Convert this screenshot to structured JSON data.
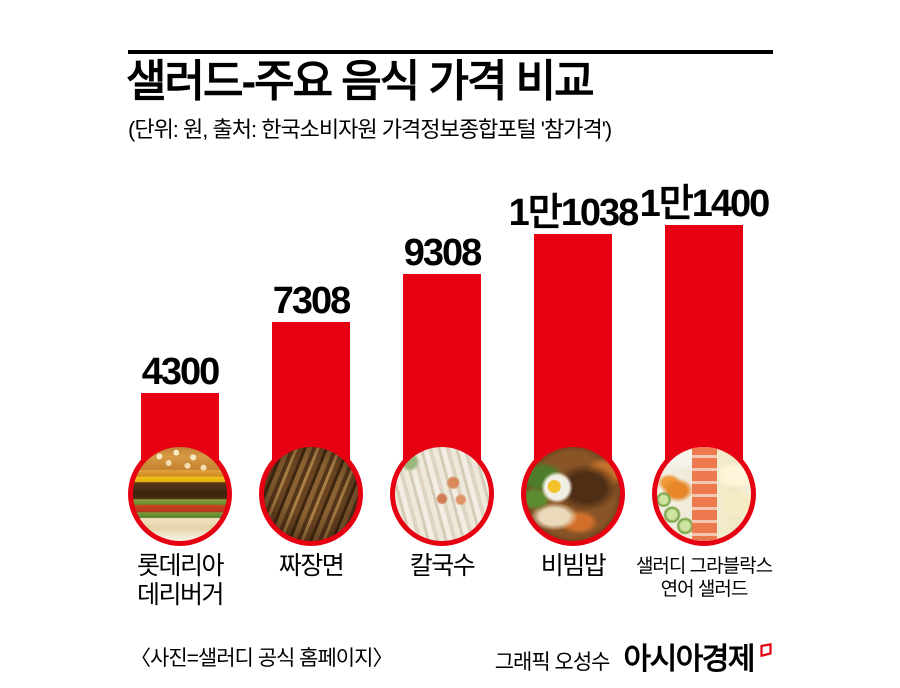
{
  "header": {
    "title": "샐러드-주요 음식 가격 비교",
    "subtitle": "(단위: 원, 출처: 한국소비자원 가격정보종합포털 '참가격')"
  },
  "chart_data": {
    "type": "bar",
    "title": "샐러드-주요 음식 가격 비교",
    "unit_source_note": "(단위: 원, 출처: 한국소비자원 가격정보종합포털 '참가격')",
    "unit": "원",
    "categories": [
      "롯데리아 데리버거",
      "짜장면",
      "칼국수",
      "비빔밥",
      "샐러디 그라블락스 연어 샐러드"
    ],
    "values": [
      4300,
      7308,
      9308,
      11038,
      11400
    ],
    "value_labels": [
      "4300",
      "7308",
      "9308",
      "1만1038",
      "1만1400"
    ],
    "photo_icons": [
      "burger-photo",
      "jjajangmyeon-photo",
      "kalguksu-photo",
      "bibimbap-photo",
      "salmon-salad-photo"
    ],
    "bar_color": "#e60012",
    "ylim": [
      0,
      11400
    ],
    "grid": false,
    "legend": "none"
  },
  "bars": [
    {
      "value_label": "4300",
      "line1": "롯데리아",
      "line2": "데리버거"
    },
    {
      "value_label": "7308",
      "line1": "짜장면",
      "line2": ""
    },
    {
      "value_label": "9308",
      "line1": "칼국수",
      "line2": ""
    },
    {
      "value_label": "1만1038",
      "line1": "비빔밥",
      "line2": ""
    },
    {
      "value_label": "1만1400",
      "line1": "샐러디 그라블락스",
      "line2": "연어 샐러드"
    }
  ],
  "footer": {
    "photo_credit": "〈사진=샐러디 공식 홈페이지〉",
    "graphic_credit": "그래픽 오성수",
    "brand": "아시아경제",
    "brand_mark": "asia-economy-logo-mark",
    "brand_mark_color": "#e60012"
  },
  "colors": {
    "bar_red": "#e60012",
    "text": "#000000",
    "background": "#ffffff"
  }
}
